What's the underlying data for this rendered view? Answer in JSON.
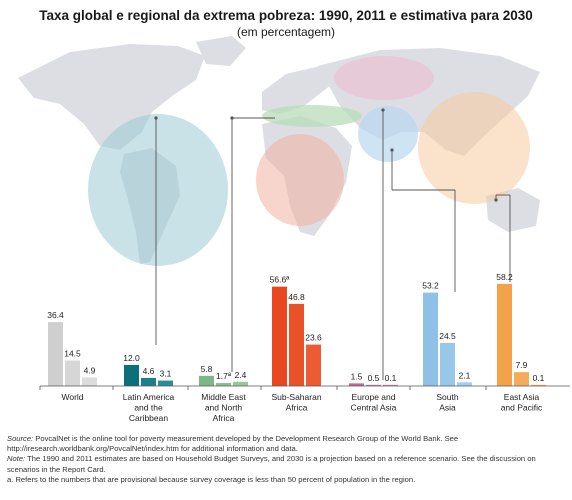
{
  "chart_data": {
    "type": "bar",
    "title": "Taxa global e regional da extrema pobreza: 1990, 2011 e estimativa para 2030",
    "subtitle": "(em percentagem)",
    "xlabel": "",
    "ylabel": "",
    "ylim": [
      0,
      60
    ],
    "grid": false,
    "years": [
      "1990",
      "2011",
      "2030"
    ],
    "categories": [
      "World",
      "Latin America and the Caribbean",
      "Middle East and North Africa",
      "Sub-Saharan Africa",
      "Europe and Central Asia",
      "South Asia",
      "East Asia and Pacific"
    ],
    "category_label_lines": [
      [
        "World"
      ],
      [
        "Latin America",
        "and the",
        "Caribbean"
      ],
      [
        "Middle East",
        "and North",
        "Africa"
      ],
      [
        "Sub-Saharan",
        "Africa"
      ],
      [
        "Europe and",
        "Central Asia"
      ],
      [
        "South",
        "Asia"
      ],
      [
        "East Asia",
        "and Pacific"
      ]
    ],
    "groups": [
      {
        "category": "World",
        "values": [
          36.4,
          14.5,
          4.9
        ],
        "labels": [
          "36.4",
          "14.5",
          "4.9"
        ],
        "colors": [
          "#cfcfcf",
          "#d6d6d6",
          "#dcdcdc"
        ]
      },
      {
        "category": "Latin America and the Caribbean",
        "values": [
          12.0,
          4.6,
          3.1
        ],
        "labels": [
          "12.0",
          "4.6",
          "3.1"
        ],
        "colors": [
          "#0c6f7a",
          "#1c7f8b",
          "#2a8d99"
        ]
      },
      {
        "category": "Middle East and North Africa",
        "values": [
          5.8,
          1.7,
          2.4
        ],
        "labels": [
          "5.8",
          "1.7ª",
          "2.4"
        ],
        "colors": [
          "#7fb685",
          "#8cbf92",
          "#98c79e"
        ]
      },
      {
        "category": "Sub-Saharan Africa",
        "values": [
          56.6,
          46.8,
          23.6
        ],
        "labels": [
          "56.6ª",
          "46.8",
          "23.6"
        ],
        "colors": [
          "#e8471f",
          "#ea5129",
          "#ec5b33"
        ]
      },
      {
        "category": "Europe and Central Asia",
        "values": [
          1.5,
          0.5,
          0.1
        ],
        "labels": [
          "1.5",
          "0.5",
          "0.1"
        ],
        "colors": [
          "#c06a93",
          "#c779a0",
          "#cd87aa"
        ]
      },
      {
        "category": "South Asia",
        "values": [
          53.2,
          24.5,
          2.1
        ],
        "labels": [
          "53.2",
          "24.5",
          "2.1"
        ],
        "colors": [
          "#8fc1e6",
          "#99c7ea",
          "#a3cdec"
        ]
      },
      {
        "category": "East Asia and Pacific",
        "values": [
          58.2,
          7.9,
          0.1
        ],
        "labels": [
          "58.2",
          "7.9",
          "0.1"
        ],
        "colors": [
          "#f4a24a",
          "#f5ac5a",
          "#f6b468"
        ]
      }
    ]
  },
  "notes": {
    "source_label": "Source:",
    "source_text": "PovcalNet is the online tool for poverty measurement developed by the Development Research Group of the World Bank. See http://iresearch.worldbank.org/PovcalNet/index.htm for additional information and data.",
    "note_label": "Note:",
    "note_text": "The 1990 and 2011 estimates are based on Household Budget Surveys, and 2030 is a projection based on a reference scenario. See the discussion on scenarios in the Report Card.",
    "footnote_a": "a. Refers to the numbers that are provisional because survey coverage is less than 50 percent of population in the region."
  },
  "map": {
    "icon": "world-map-background",
    "colors": {
      "land": "#d9dbe0",
      "water": "#f2f3f6",
      "leader": "#555555"
    }
  }
}
